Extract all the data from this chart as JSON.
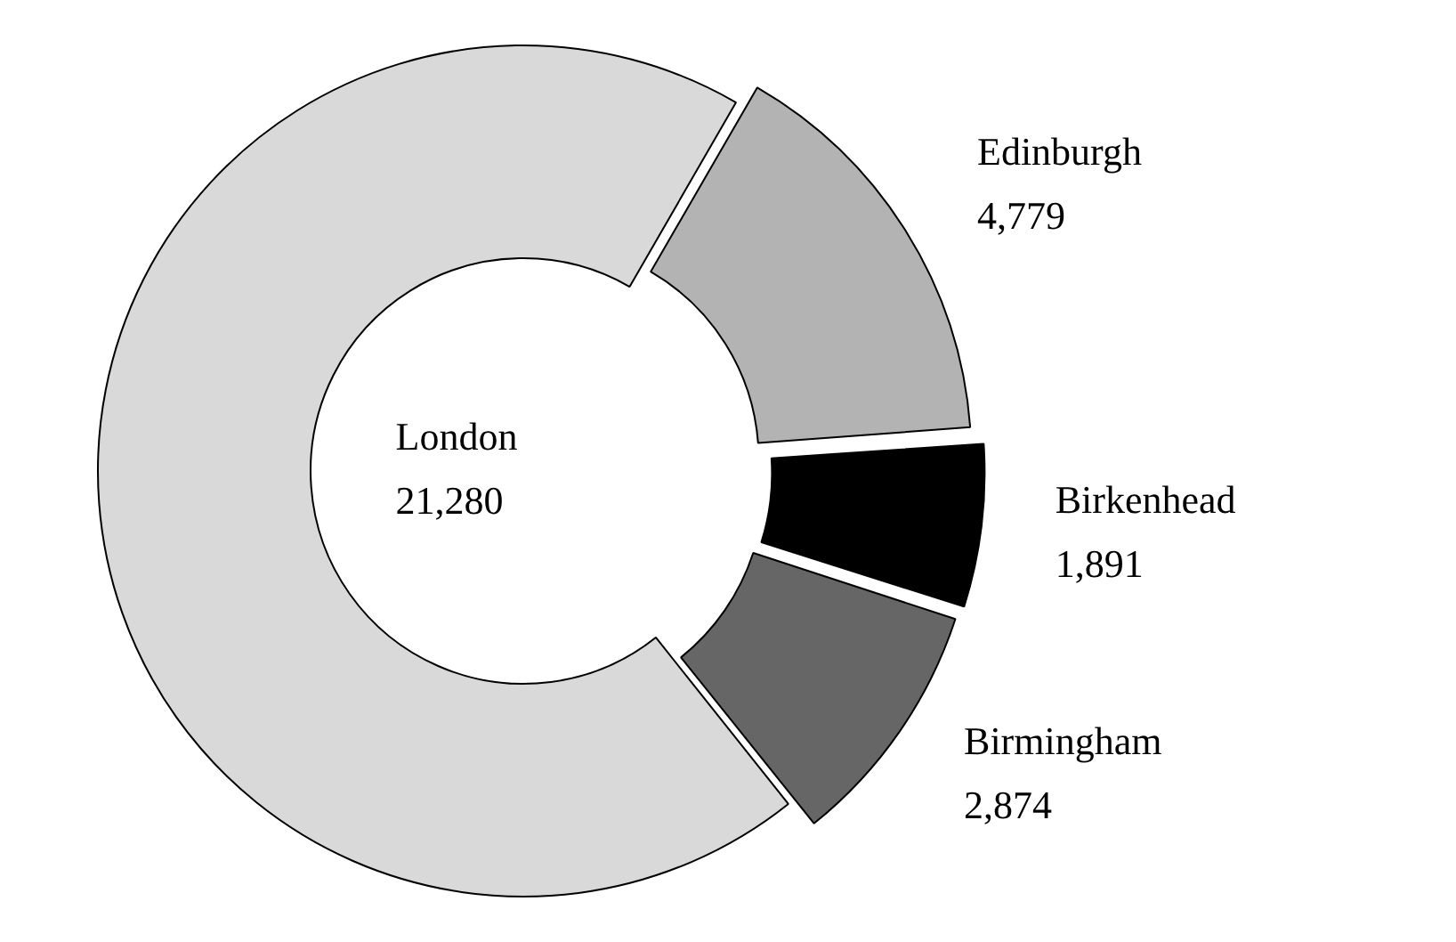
{
  "chart_data": {
    "type": "donut",
    "categories": [
      "Edinburgh",
      "Birkenhead",
      "Birmingham",
      "London"
    ],
    "values": [
      4779,
      1891,
      2874,
      21280
    ],
    "colors": [
      "#b3b3b3",
      "#000000",
      "#666666",
      "#d9d9d9"
    ],
    "value_labels": [
      "4,779",
      "1,891",
      "2,874",
      "21,280"
    ]
  }
}
